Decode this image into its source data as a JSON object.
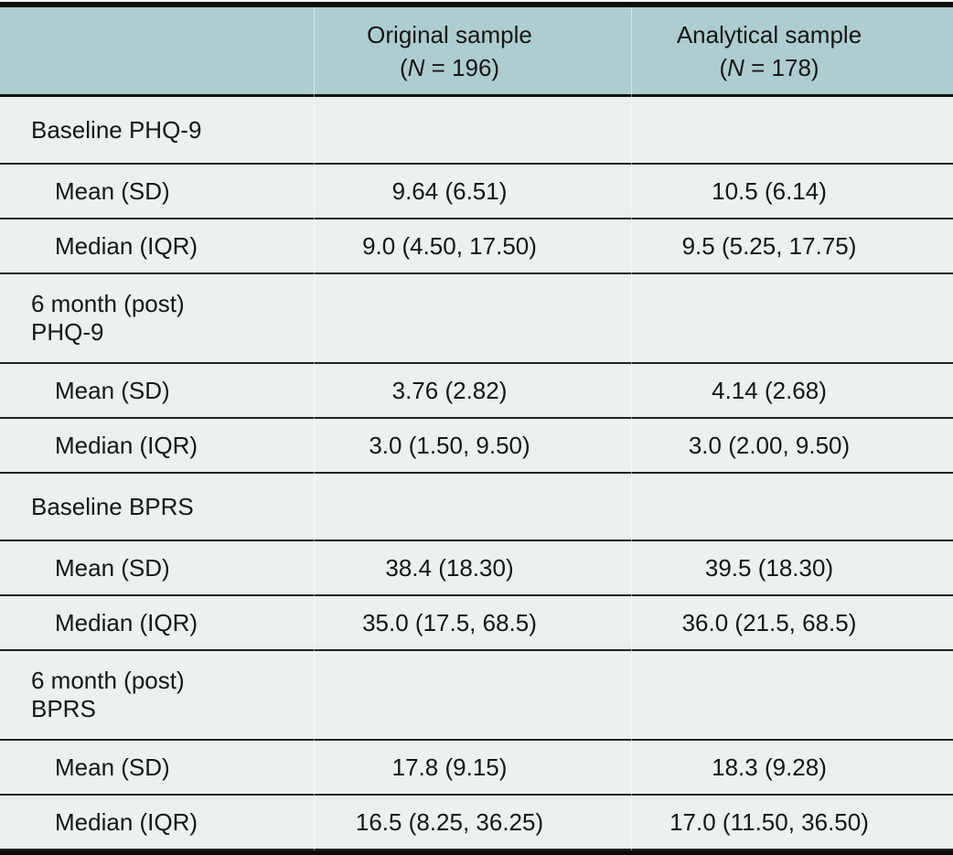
{
  "header": {
    "col2": {
      "title": "Original sample",
      "n_open": "(",
      "n_symbol": "N",
      "n_rest": " = 196)"
    },
    "col3": {
      "title": "Analytical sample",
      "n_open": "(",
      "n_symbol": "N",
      "n_rest": " = 178)"
    }
  },
  "rows": [
    {
      "label": "Baseline PHQ-9"
    },
    {
      "label": "Mean (SD)",
      "original": "9.64 (6.51)",
      "analytical": "10.5 (6.14)"
    },
    {
      "label": "Median (IQR)",
      "original": "9.0 (4.50, 17.50)",
      "analytical": "9.5 (5.25, 17.75)"
    },
    {
      "label": "6 month (post)",
      "label2": "PHQ-9"
    },
    {
      "label": "Mean (SD)",
      "original": "3.76 (2.82)",
      "analytical": "4.14 (2.68)"
    },
    {
      "label": "Median (IQR)",
      "original": "3.0 (1.50, 9.50)",
      "analytical": "3.0 (2.00, 9.50)"
    },
    {
      "label": "Baseline BPRS"
    },
    {
      "label": "Mean (SD)",
      "original": "38.4 (18.30)",
      "analytical": "39.5 (18.30)"
    },
    {
      "label": "Median (IQR)",
      "original": "35.0 (17.5, 68.5)",
      "analytical": "36.0 (21.5, 68.5)"
    },
    {
      "label": "6 month (post)",
      "label2": "BPRS"
    },
    {
      "label": "Mean (SD)",
      "original": "17.8 (9.15)",
      "analytical": "18.3 (9.28)"
    },
    {
      "label": "Median (IQR)",
      "original": "16.5 (8.25, 36.25)",
      "analytical": "17.0 (11.50, 36.50)"
    }
  ],
  "colors": {
    "header_bg": "#aecdd0",
    "body_bg": "#eaf1f0",
    "rule_dark": "#0c0c0c",
    "rule_row": "#222222",
    "text": "#161616"
  }
}
